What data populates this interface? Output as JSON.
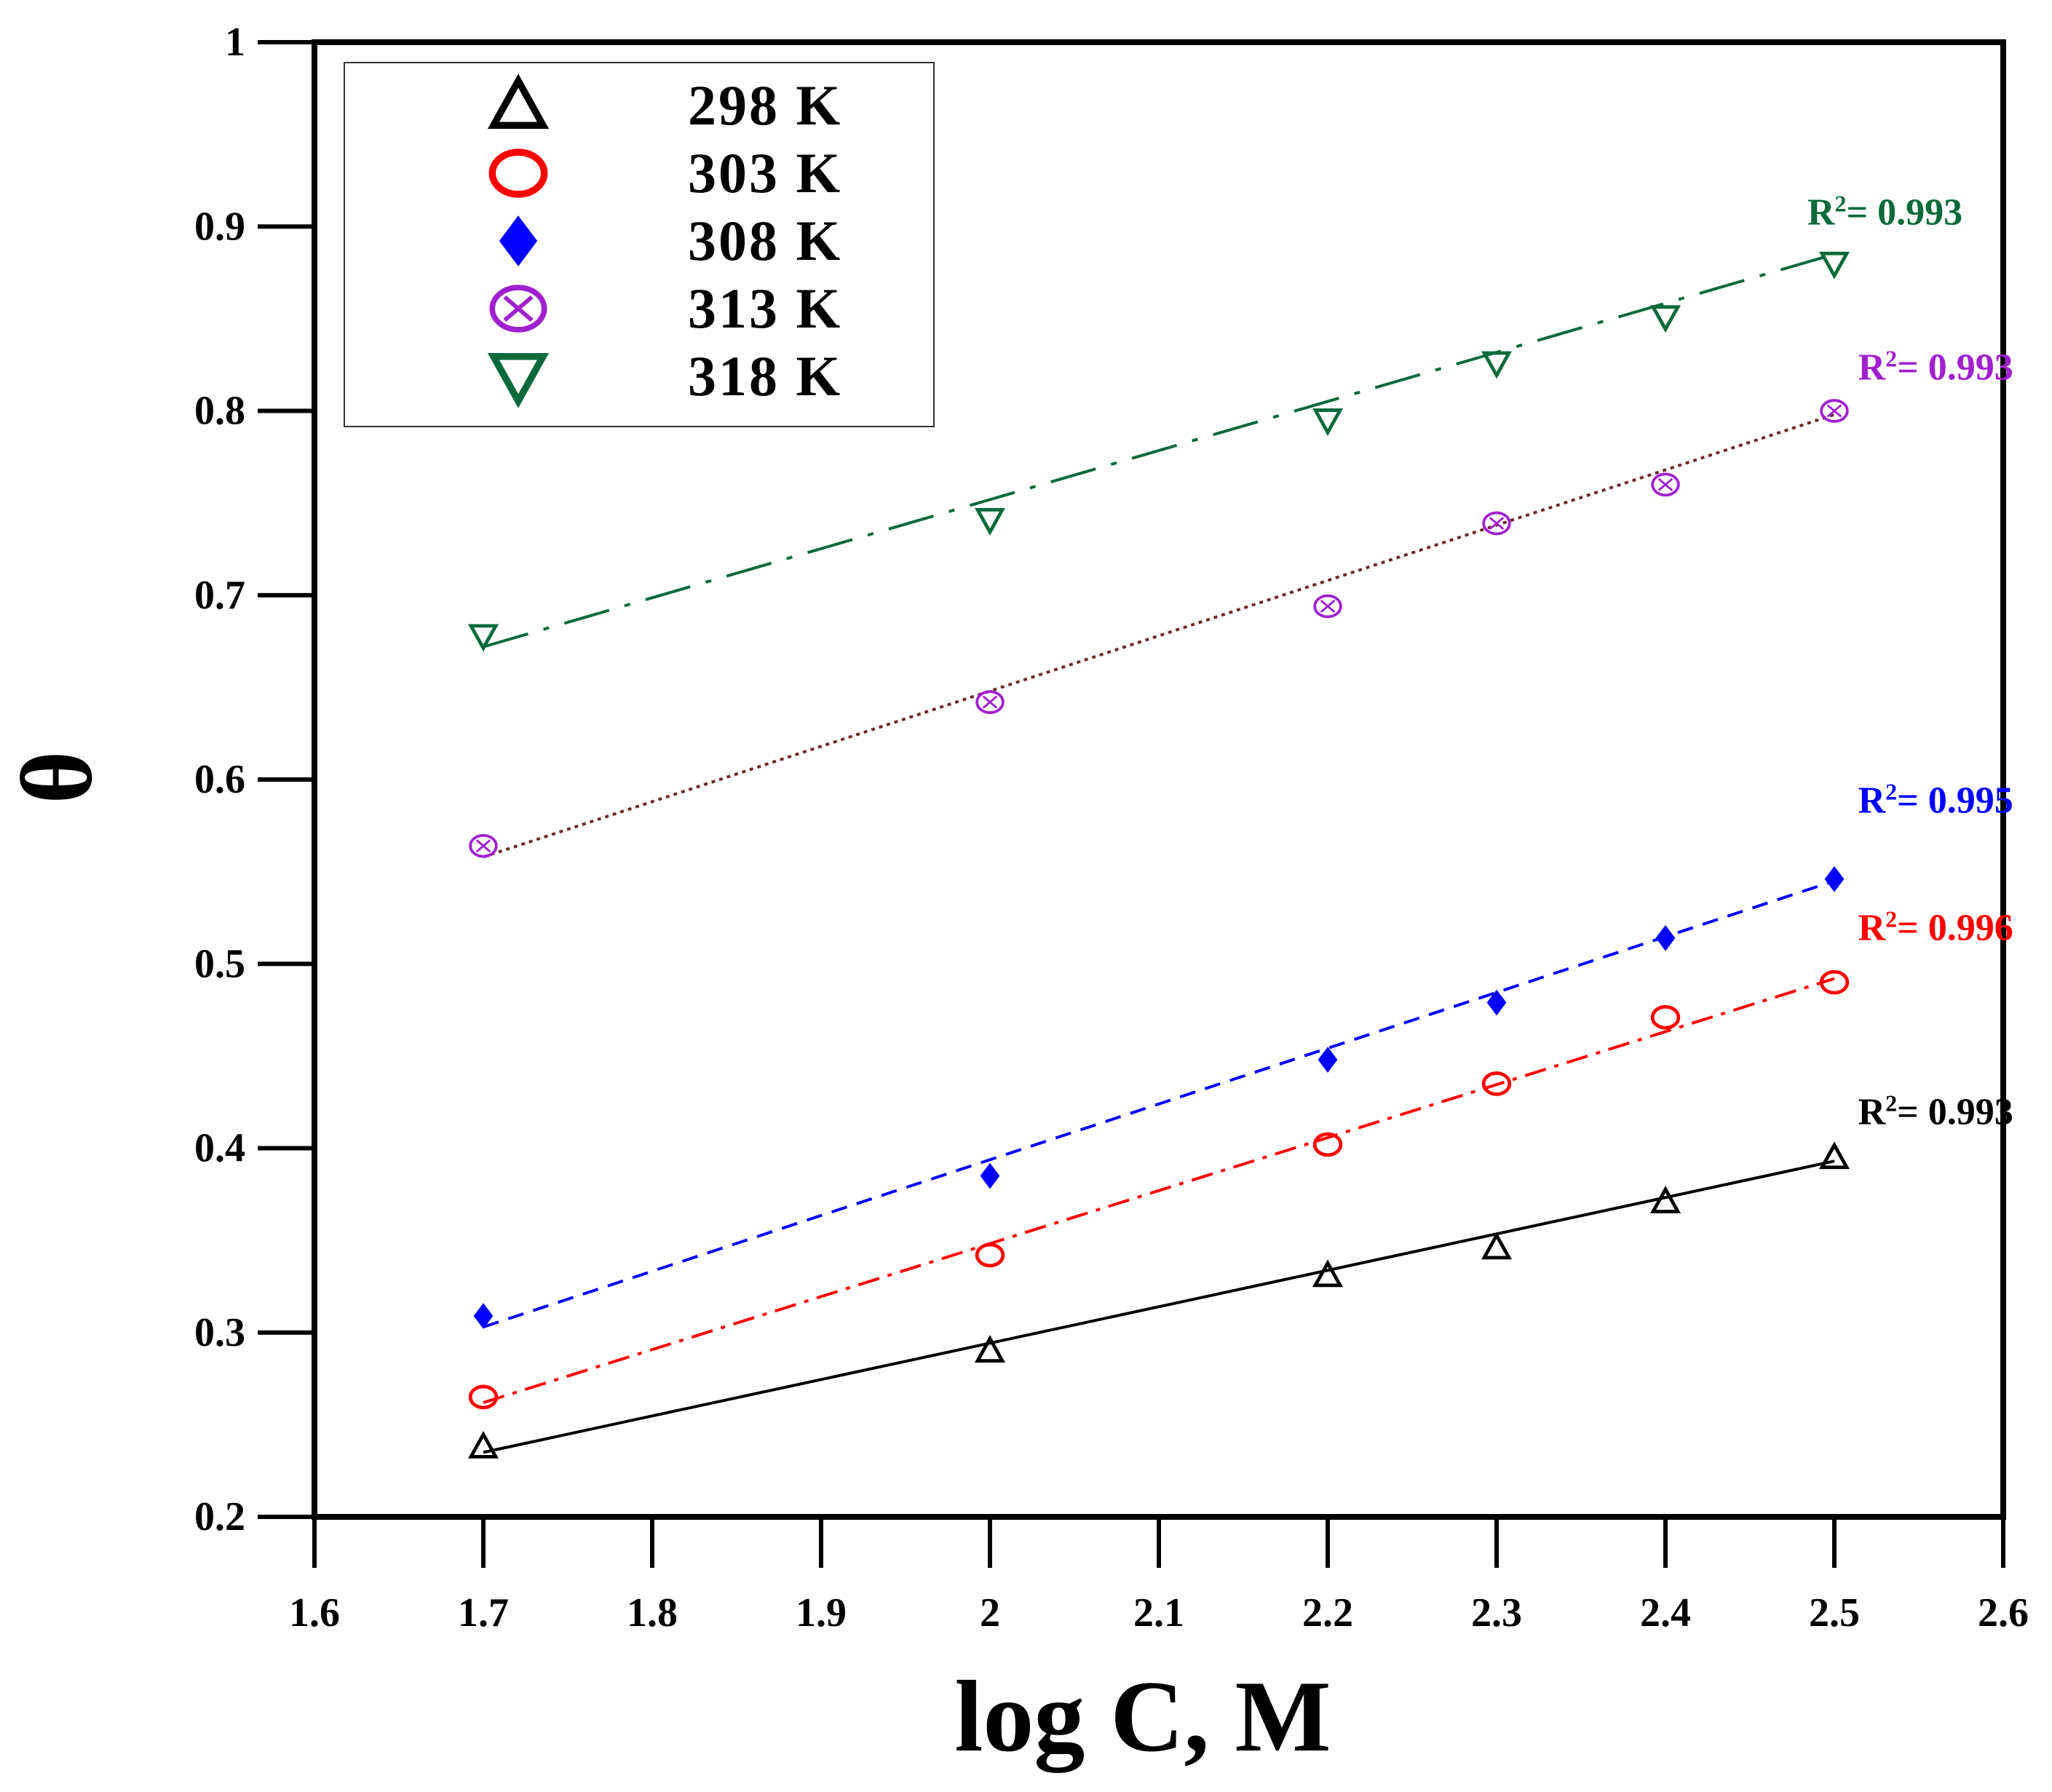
{
  "chart_data": {
    "type": "scatter",
    "title": "",
    "xlabel": "log C, M",
    "ylabel": "θ",
    "xlim": [
      1.6,
      2.6
    ],
    "ylim": [
      0.2,
      1.0
    ],
    "x_ticks": [
      "1.6",
      "1.7",
      "1.8",
      "1.9",
      "2",
      "2.1",
      "2.2",
      "2.3",
      "2.4",
      "2.5",
      "2.6"
    ],
    "y_ticks": [
      "0.2",
      "0.3",
      "0.4",
      "0.5",
      "0.6",
      "0.7",
      "0.8",
      "0.9",
      "1"
    ],
    "grid": false,
    "legend_position": "top-left",
    "series": [
      {
        "name": "298 K",
        "marker": "triangle-up-open",
        "color": "#000000",
        "line_color": "#000000",
        "line_style": "solid",
        "x": [
          1.7,
          2.0,
          2.2,
          2.3,
          2.4,
          2.5
        ],
        "y": [
          0.238,
          0.29,
          0.331,
          0.346,
          0.371,
          0.395
        ],
        "fit": {
          "x": [
            1.7,
            2.5
          ],
          "y": [
            0.235,
            0.393
          ]
        },
        "r2_label": "R²= 0.993"
      },
      {
        "name": "303 K",
        "marker": "circle-open",
        "color": "#ff0000",
        "line_color": "#ff0000",
        "line_style": "dashdot",
        "x": [
          1.7,
          2.0,
          2.2,
          2.3,
          2.4,
          2.5
        ],
        "y": [
          0.265,
          0.342,
          0.402,
          0.435,
          0.471,
          0.49
        ],
        "fit": {
          "x": [
            1.7,
            2.5
          ],
          "y": [
            0.262,
            0.492
          ]
        },
        "r2_label": "R²= 0.996"
      },
      {
        "name": "308 K",
        "marker": "diamond-filled",
        "color": "#0000ff",
        "line_color": "#0000ff",
        "line_style": "dashed",
        "x": [
          1.7,
          2.0,
          2.2,
          2.3,
          2.4,
          2.5
        ],
        "y": [
          0.309,
          0.385,
          0.448,
          0.479,
          0.514,
          0.546
        ],
        "fit": {
          "x": [
            1.7,
            2.5
          ],
          "y": [
            0.303,
            0.545
          ]
        },
        "r2_label": "R²= 0.995"
      },
      {
        "name": "313 K",
        "marker": "circle-cross",
        "color": "#a020d0",
        "line_color": "#6b2a2a",
        "line_style": "dotted",
        "x": [
          1.7,
          2.0,
          2.2,
          2.3,
          2.4,
          2.5
        ],
        "y": [
          0.564,
          0.642,
          0.694,
          0.739,
          0.76,
          0.8
        ],
        "fit": {
          "x": [
            1.7,
            2.5
          ],
          "y": [
            0.558,
            0.798
          ]
        },
        "r2_label": "R²= 0.993"
      },
      {
        "name": "318 K",
        "marker": "triangle-down-open",
        "color": "#0a6a3a",
        "line_color": "#0a6a3a",
        "line_style": "longdashdot",
        "x": [
          1.7,
          2.0,
          2.2,
          2.3,
          2.4,
          2.5
        ],
        "y": [
          0.678,
          0.741,
          0.795,
          0.826,
          0.851,
          0.88
        ],
        "fit": {
          "x": [
            1.7,
            2.5
          ],
          "y": [
            0.672,
            0.885
          ]
        },
        "r2_label": "R²=  0.993"
      }
    ]
  }
}
